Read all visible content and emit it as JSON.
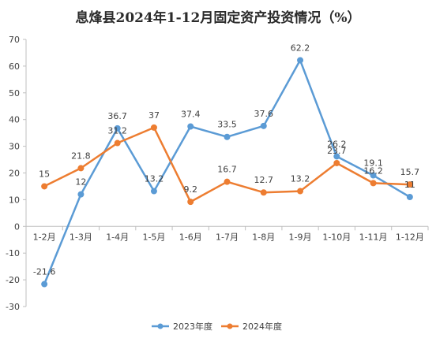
{
  "chart_data": {
    "type": "line",
    "title": "息烽县2024年1-12月固定资产投资情况（%）",
    "categories": [
      "1-2月",
      "1-3月",
      "1-4月",
      "1-5月",
      "1-6月",
      "1-7月",
      "1-8月",
      "1-9月",
      "1-10月",
      "1-11月",
      "1-12月"
    ],
    "series": [
      {
        "name": "2023年度",
        "color": "#5B9BD5",
        "values": [
          -21.6,
          12,
          36.7,
          13.2,
          37.4,
          33.5,
          37.6,
          62.2,
          26.2,
          19.1,
          11
        ]
      },
      {
        "name": "2024年度",
        "color": "#ED7D31",
        "values": [
          15,
          21.8,
          31.2,
          37,
          9.2,
          16.7,
          12.7,
          13.2,
          23.7,
          16.2,
          15.7
        ]
      }
    ],
    "ylim": [
      -30,
      70
    ],
    "yticks": [
      -30,
      -20,
      -10,
      0,
      10,
      20,
      30,
      40,
      50,
      60,
      70
    ],
    "grid": false,
    "legend_position": "bottom"
  }
}
